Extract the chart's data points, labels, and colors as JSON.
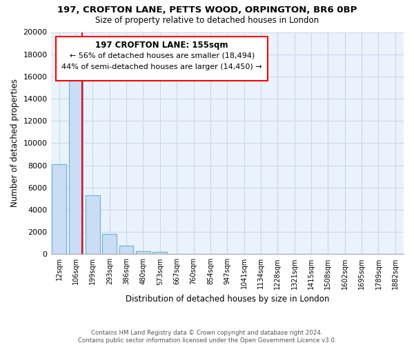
{
  "title1": "197, CROFTON LANE, PETTS WOOD, ORPINGTON, BR6 0BP",
  "title2": "Size of property relative to detached houses in London",
  "xlabel": "Distribution of detached houses by size in London",
  "ylabel": "Number of detached properties",
  "bar_labels": [
    "12sqm",
    "106sqm",
    "199sqm",
    "293sqm",
    "386sqm",
    "480sqm",
    "573sqm",
    "667sqm",
    "760sqm",
    "854sqm",
    "947sqm",
    "1041sqm",
    "1134sqm",
    "1228sqm",
    "1321sqm",
    "1415sqm",
    "1508sqm",
    "1602sqm",
    "1695sqm",
    "1789sqm",
    "1882sqm"
  ],
  "bar_values": [
    8100,
    16500,
    5300,
    1800,
    750,
    250,
    200,
    0,
    0,
    0,
    0,
    0,
    0,
    0,
    0,
    0,
    0,
    0,
    0,
    0,
    0
  ],
  "bar_color": "#c9ddf5",
  "bar_edge_color": "#6baed6",
  "vline_color": "red",
  "vline_x": 1.35,
  "annotation_title": "197 CROFTON LANE: 155sqm",
  "annotation_line1": "← 56% of detached houses are smaller (18,494)",
  "annotation_line2": "44% of semi-detached houses are larger (14,450) →",
  "box_edge_color": "red",
  "box_face_color": "white",
  "ylim": [
    0,
    20000
  ],
  "yticks": [
    0,
    2000,
    4000,
    6000,
    8000,
    10000,
    12000,
    14000,
    16000,
    18000,
    20000
  ],
  "footer1": "Contains HM Land Registry data © Crown copyright and database right 2024.",
  "footer2": "Contains public sector information licensed under the Open Government Licence v3.0.",
  "grid_color": "#c8d8ea",
  "bg_color": "#eaf2fb"
}
